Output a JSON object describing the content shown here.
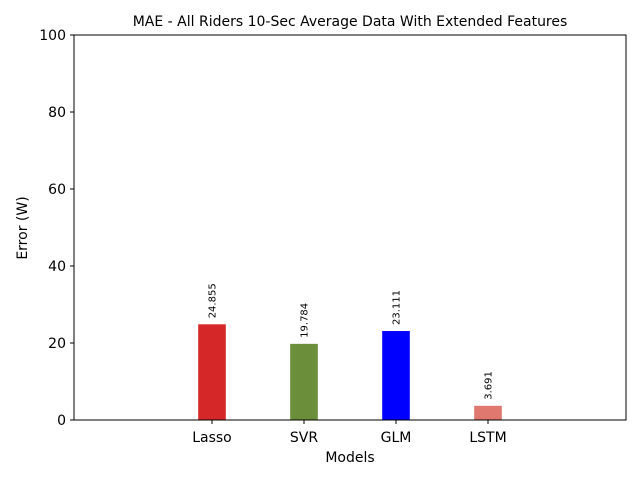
{
  "chart_data": {
    "type": "bar",
    "title": "MAE - All Riders 10-Sec Average Data With Extended Features",
    "xlabel": "Models",
    "ylabel": "Error (W)",
    "categories": [
      "Lasso",
      "SVR",
      "GLM",
      "LSTM"
    ],
    "values": [
      24.855,
      19.784,
      23.111,
      3.691
    ],
    "value_labels": [
      "24.855",
      "19.784",
      "23.111",
      "3.691"
    ],
    "bar_colors": [
      "#d62728",
      "#6b8e3a",
      "#0000ff",
      "#e07870"
    ],
    "ylim": [
      0,
      100
    ],
    "yticks": [
      0,
      20,
      40,
      60,
      80,
      100
    ],
    "grid": false,
    "legend": "none"
  }
}
